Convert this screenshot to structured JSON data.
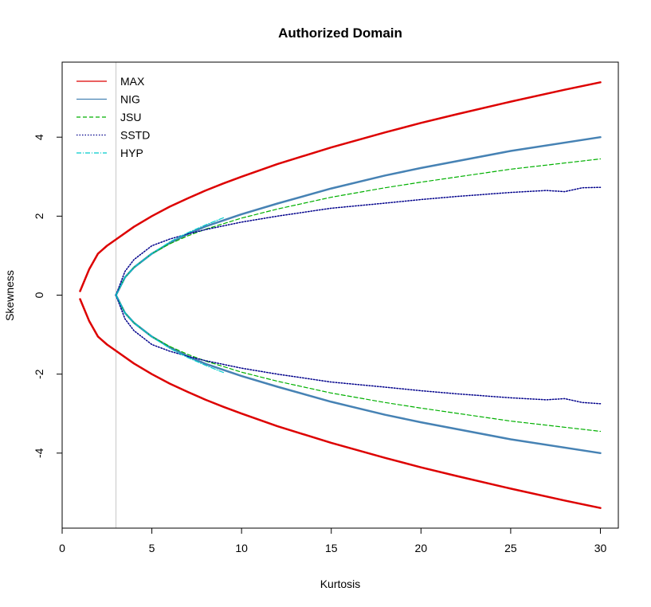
{
  "chart_data": {
    "type": "line",
    "title": "Authorized Domain",
    "xlabel": "Kurtosis",
    "ylabel": "Skewness",
    "xlim": [
      0,
      31
    ],
    "ylim": [
      -5.9,
      5.9
    ],
    "x_ticks": [
      0,
      5,
      10,
      15,
      20,
      25,
      30
    ],
    "y_ticks": [
      -4,
      -2,
      0,
      2,
      4
    ],
    "reference_line_x": 3,
    "legend_position": "top-left",
    "colors": {
      "MAX": "#dd0000",
      "NIG": "#4682b4",
      "JSU": "#00b000",
      "SSTD": "#00008b",
      "HYP": "#00cccc",
      "reference": "#c8c8c8"
    },
    "series": [
      {
        "name": "MAX",
        "style": "solid-thick",
        "x": [
          1,
          1.5,
          2,
          2.5,
          3,
          4,
          5,
          6,
          7,
          8,
          9,
          10,
          12,
          15,
          18,
          20,
          22,
          25,
          28,
          30
        ],
        "upper": [
          0.1,
          0.65,
          1.05,
          1.25,
          1.41,
          1.73,
          2.0,
          2.24,
          2.45,
          2.65,
          2.83,
          3.0,
          3.32,
          3.74,
          4.12,
          4.36,
          4.58,
          4.9,
          5.2,
          5.39
        ],
        "lower": [
          -0.1,
          -0.65,
          -1.05,
          -1.25,
          -1.41,
          -1.73,
          -2.0,
          -2.24,
          -2.45,
          -2.65,
          -2.83,
          -3.0,
          -3.32,
          -3.74,
          -4.12,
          -4.36,
          -4.58,
          -4.9,
          -5.2,
          -5.39
        ]
      },
      {
        "name": "NIG",
        "style": "solid-thick",
        "x": [
          3,
          3.5,
          4,
          5,
          6,
          7,
          8,
          10,
          12,
          15,
          18,
          20,
          25,
          30
        ],
        "upper": [
          0,
          0.45,
          0.7,
          1.05,
          1.32,
          1.55,
          1.74,
          2.05,
          2.32,
          2.7,
          3.03,
          3.22,
          3.65,
          4.0
        ],
        "lower": [
          0,
          -0.45,
          -0.7,
          -1.05,
          -1.32,
          -1.55,
          -1.74,
          -2.05,
          -2.32,
          -2.7,
          -3.03,
          -3.22,
          -3.65,
          -4.0
        ]
      },
      {
        "name": "JSU",
        "style": "dashed",
        "x": [
          3,
          3.5,
          4,
          5,
          6,
          7,
          8,
          10,
          12,
          15,
          18,
          20,
          25,
          30
        ],
        "upper": [
          0,
          0.45,
          0.7,
          1.05,
          1.3,
          1.5,
          1.67,
          1.95,
          2.18,
          2.48,
          2.72,
          2.86,
          3.19,
          3.45
        ],
        "lower": [
          0,
          -0.45,
          -0.7,
          -1.05,
          -1.3,
          -1.5,
          -1.67,
          -1.95,
          -2.18,
          -2.48,
          -2.72,
          -2.86,
          -3.19,
          -3.45
        ]
      },
      {
        "name": "SSTD",
        "style": "dotted",
        "x": [
          3,
          3.5,
          4,
          5,
          6,
          7,
          8,
          10,
          12,
          15,
          18,
          20,
          22,
          25,
          27,
          28,
          29,
          30
        ],
        "upper": [
          0,
          0.6,
          0.9,
          1.25,
          1.42,
          1.55,
          1.66,
          1.85,
          2.0,
          2.2,
          2.33,
          2.42,
          2.5,
          2.6,
          2.65,
          2.62,
          2.72,
          2.73
        ],
        "lower": [
          0,
          -0.6,
          -0.9,
          -1.25,
          -1.42,
          -1.55,
          -1.66,
          -1.85,
          -2.0,
          -2.2,
          -2.33,
          -2.42,
          -2.5,
          -2.6,
          -2.65,
          -2.62,
          -2.72,
          -2.75
        ]
      },
      {
        "name": "HYP",
        "style": "dashdot",
        "x": [
          3,
          3.5,
          4,
          5,
          6,
          7,
          8,
          9
        ],
        "upper": [
          0,
          0.45,
          0.7,
          1.05,
          1.35,
          1.58,
          1.78,
          1.96
        ],
        "lower": [
          0,
          -0.45,
          -0.7,
          -1.05,
          -1.35,
          -1.58,
          -1.78,
          -1.96
        ]
      }
    ]
  }
}
